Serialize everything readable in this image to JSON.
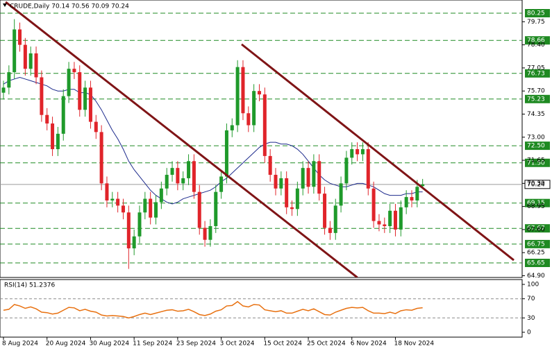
{
  "chart_data": {
    "type": "candlestick",
    "title": "CRUDE,Daily  70.14 70.56 70.09 70.24",
    "categories": [
      "8 Aug 2024",
      null,
      null,
      null,
      null,
      null,
      null,
      null,
      "20 Aug 2024",
      null,
      null,
      null,
      null,
      null,
      null,
      null,
      "30 Aug 2024",
      null,
      null,
      null,
      null,
      null,
      null,
      null,
      "11 Sep 2024",
      null,
      null,
      null,
      null,
      null,
      null,
      null,
      "23 Sep 2024",
      null,
      null,
      null,
      null,
      null,
      null,
      null,
      "3 Oct 2024",
      null,
      null,
      null,
      null,
      null,
      null,
      null,
      "15 Oct 2024",
      null,
      null,
      null,
      null,
      null,
      null,
      null,
      "25 Oct 2024",
      null,
      null,
      null,
      null,
      null,
      null,
      null,
      "6 Nov 2024",
      null,
      null,
      null,
      null,
      null,
      null,
      null,
      "18 Nov 2024",
      null,
      null,
      null,
      null,
      null
    ],
    "open": [
      75.6,
      75.9,
      76.8,
      79.3,
      78.4,
      77.0,
      77.9,
      76.5,
      74.3,
      73.8,
      72.3,
      73.2,
      75.4,
      77.0,
      76.8,
      74.6,
      75.9,
      73.9,
      73.3,
      70.3,
      69.3,
      69.4,
      69.0,
      68.6,
      66.5,
      67.2,
      68.6,
      69.4,
      68.3,
      69.2,
      70.0,
      70.8,
      71.2,
      70.3,
      70.6,
      71.6,
      69.8,
      67.7,
      67.0,
      67.8,
      69.8,
      70.7,
      73.4,
      73.7,
      77.1,
      74.4,
      73.7,
      75.7,
      75.5,
      71.9,
      70.8,
      70.0,
      70.6,
      68.9,
      68.8,
      70.0,
      71.2,
      70.1,
      71.6,
      69.7,
      67.7,
      67.4,
      69.0,
      70.3,
      71.8,
      72.3,
      72.0,
      72.3,
      70.0,
      68.1,
      67.9,
      67.8,
      68.7,
      67.6,
      68.9,
      69.5,
      69.3,
      70.14
    ],
    "high": [
      76.3,
      77.2,
      79.9,
      79.7,
      78.8,
      78.3,
      78.3,
      76.9,
      74.7,
      74.2,
      73.6,
      75.8,
      77.4,
      77.4,
      77.2,
      76.3,
      76.3,
      74.3,
      73.7,
      70.7,
      69.8,
      69.8,
      69.4,
      69.0,
      67.6,
      69.0,
      69.8,
      69.8,
      69.6,
      70.4,
      71.2,
      71.6,
      71.6,
      71.0,
      72.0,
      72.0,
      70.2,
      68.1,
      68.2,
      70.2,
      71.1,
      73.8,
      74.1,
      77.5,
      77.5,
      74.8,
      76.1,
      76.1,
      75.9,
      72.3,
      71.2,
      71.0,
      71.0,
      69.3,
      70.4,
      71.6,
      71.6,
      72.0,
      72.0,
      70.1,
      68.1,
      69.4,
      70.7,
      72.2,
      72.7,
      72.7,
      72.7,
      72.7,
      70.4,
      68.5,
      68.3,
      69.1,
      69.1,
      69.3,
      69.9,
      69.9,
      70.5,
      70.56
    ],
    "low": [
      75.2,
      75.5,
      76.4,
      78.0,
      76.6,
      76.6,
      76.1,
      73.9,
      73.4,
      71.9,
      71.9,
      72.8,
      75.0,
      76.4,
      74.2,
      74.2,
      73.5,
      72.9,
      69.9,
      68.9,
      68.9,
      68.6,
      68.2,
      65.3,
      66.1,
      66.8,
      68.2,
      67.9,
      67.9,
      68.8,
      69.6,
      70.4,
      69.9,
      69.9,
      70.2,
      69.4,
      67.3,
      66.6,
      66.6,
      67.4,
      69.4,
      70.3,
      73.0,
      73.3,
      74.0,
      73.3,
      73.3,
      75.1,
      71.5,
      70.4,
      69.6,
      69.6,
      68.5,
      68.4,
      68.4,
      69.6,
      69.7,
      69.7,
      69.3,
      67.3,
      67.0,
      67.0,
      68.6,
      69.9,
      71.4,
      71.6,
      71.6,
      69.6,
      67.7,
      67.5,
      67.4,
      67.4,
      67.2,
      67.2,
      68.5,
      68.9,
      68.9,
      70.09
    ],
    "close": [
      75.9,
      76.8,
      79.3,
      78.4,
      77.0,
      77.9,
      76.5,
      74.3,
      73.8,
      72.3,
      73.2,
      75.4,
      77.0,
      76.8,
      74.6,
      75.9,
      73.9,
      73.3,
      70.3,
      69.3,
      69.4,
      69.0,
      68.6,
      66.5,
      67.2,
      68.6,
      69.4,
      68.3,
      69.2,
      70.0,
      70.8,
      71.2,
      70.3,
      70.6,
      71.6,
      69.8,
      67.7,
      67.0,
      67.8,
      69.8,
      70.7,
      73.4,
      73.7,
      77.1,
      74.4,
      73.7,
      75.7,
      75.5,
      71.9,
      70.8,
      70.0,
      70.6,
      68.9,
      68.8,
      70.0,
      71.2,
      70.1,
      71.6,
      69.7,
      67.7,
      67.4,
      69.0,
      70.3,
      71.8,
      72.3,
      72.0,
      72.3,
      70.0,
      68.1,
      67.9,
      67.8,
      68.7,
      67.6,
      68.9,
      69.5,
      69.3,
      70.1,
      70.24
    ],
    "up_color": "#1f9a2b",
    "down_color": "#e0242a",
    "ma": {
      "color": "#1c2a8c",
      "values": [
        76.1,
        76.3,
        76.4,
        76.5,
        76.4,
        76.3,
        76.2,
        76.1,
        76.0,
        75.8,
        75.7,
        75.7,
        75.8,
        75.8,
        75.6,
        75.6,
        75.5,
        75.1,
        74.6,
        74.0,
        73.4,
        72.9,
        72.3,
        71.6,
        71.1,
        70.7,
        70.3,
        69.9,
        69.6,
        69.4,
        69.2,
        69.1,
        69.2,
        69.4,
        69.5,
        69.6,
        69.7,
        69.8,
        69.9,
        70.1,
        70.4,
        70.6,
        70.9,
        71.2,
        71.5,
        71.8,
        72.1,
        72.4,
        72.6,
        72.7,
        72.7,
        72.6,
        72.6,
        72.5,
        72.3,
        72.0,
        71.6,
        71.2,
        70.8,
        70.5,
        70.3,
        70.2,
        70.1,
        70.1,
        70.2,
        70.3,
        70.3,
        70.2,
        70.1,
        69.9,
        69.7,
        69.6,
        69.6,
        69.6,
        69.7,
        69.7,
        69.8,
        69.8
      ]
    },
    "trendlines": [
      {
        "color": "#7f1416",
        "start": [
          0.4,
          80.9
        ],
        "end": [
          65,
          64.8
        ]
      },
      {
        "color": "#7f1416",
        "start": [
          43.75,
          78.43
        ],
        "end": [
          93.75,
          65.81
        ]
      }
    ],
    "levels": [
      80.25,
      78.66,
      76.73,
      75.23,
      {
        "value": 72.5,
        "label": "72.50"
      },
      {
        "value": 71.5,
        "label": "71.50"
      },
      69.15,
      67.67,
      66.75,
      65.65
    ],
    "level_color": "#1f8a22",
    "last_price": 70.24,
    "ylim": [
      64.9,
      80.25
    ],
    "yticks": [
      {
        "value": 64.9,
        "label": "64.90"
      },
      66.25,
      {
        "value": 67.6,
        "label": "67.60"
      },
      68.95,
      {
        "value": 70.3,
        "label": "70.30"
      },
      71.65,
      {
        "value": 73,
        "label": "73.00"
      },
      74.35,
      {
        "value": 75.7,
        "label": "75.70"
      },
      77.05,
      {
        "value": 78.4,
        "label": "78.40"
      },
      79.75
    ],
    "rsi": {
      "title": "RSI(14) 51.2376",
      "color": "#e8700f",
      "ylim": [
        0,
        100
      ],
      "yticks": [
        0,
        30,
        70,
        100
      ],
      "levels": [
        30,
        70
      ],
      "values": [
        46,
        48,
        58,
        55,
        50,
        53,
        49,
        42,
        41,
        38,
        40,
        46,
        52,
        51,
        45,
        48,
        44,
        42,
        36,
        34,
        35,
        34,
        33,
        30,
        33,
        37,
        40,
        37,
        40,
        43,
        46,
        47,
        44,
        45,
        48,
        43,
        37,
        35,
        38,
        44,
        47,
        55,
        56,
        64,
        55,
        53,
        58,
        57,
        47,
        45,
        43,
        45,
        40,
        40,
        44,
        48,
        45,
        49,
        43,
        37,
        36,
        42,
        46,
        50,
        52,
        51,
        52,
        45,
        40,
        40,
        39,
        42,
        39,
        45,
        47,
        46,
        50,
        51.24
      ]
    }
  }
}
